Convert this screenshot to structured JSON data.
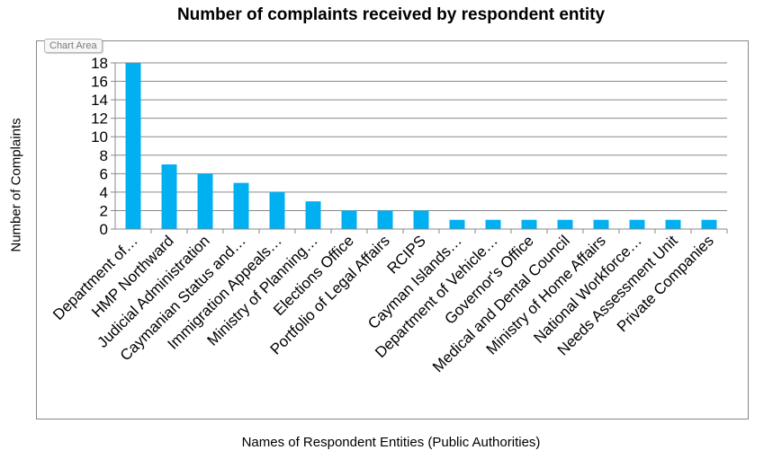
{
  "chart_area_tag": "Chart Area",
  "colors": {
    "bar": "#00b0f0",
    "grid": "#888888",
    "axis": "#888888"
  },
  "chart_data": {
    "type": "bar",
    "title": "Number of complaints received by respondent entity",
    "xlabel": "Names of Respondent  Entities  (Public Authorities)",
    "ylabel": "Number  of Complaints",
    "ylim": [
      0,
      18
    ],
    "yticks": [
      0,
      2,
      4,
      6,
      8,
      10,
      12,
      14,
      16,
      18
    ],
    "grid": true,
    "categories": [
      "Department of…",
      "HMP Northward",
      "Judicial Administration",
      "Caymanian Status and…",
      "Immigration Appeals…",
      "Ministry of Planning…",
      "Elections Office",
      "Portfolio of Legal Affairs",
      "RCIPS",
      "Cayman Islands…",
      "Department of Vehicle…",
      "Governor's Office",
      "Medical and Dental Council",
      "Ministry of Home Affairs",
      "National Workforce…",
      "Needs Assessment Unit",
      "Private Companies"
    ],
    "values": [
      18,
      7,
      6,
      5,
      4,
      3,
      2,
      2,
      2,
      1,
      1,
      1,
      1,
      1,
      1,
      1,
      1
    ]
  }
}
